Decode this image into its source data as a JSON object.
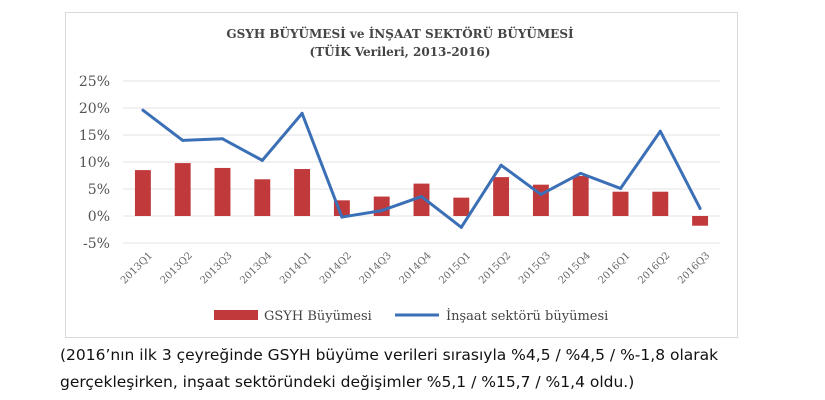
{
  "chart_data": {
    "type": "bar",
    "title": "GSYH BÜYÜMESİ ve İNŞAAT SEKTÖRÜ BÜYÜMESİ",
    "subtitle": "(TÜİK Verileri, 2013-2016)",
    "categories": [
      "2013Q1",
      "2013Q2",
      "2013Q3",
      "2013Q4",
      "2014Q1",
      "2014Q2",
      "2014Q3",
      "2014Q4",
      "2015Q1",
      "2015Q2",
      "2015Q3",
      "2015Q4",
      "2016Q1",
      "2016Q2",
      "2016Q3"
    ],
    "series": [
      {
        "name": "GSYH Büyümesi",
        "type": "bar",
        "color": "#c0393b",
        "values": [
          8.5,
          9.8,
          8.9,
          6.8,
          8.7,
          2.9,
          3.6,
          6.0,
          3.4,
          7.2,
          5.8,
          7.4,
          4.5,
          4.5,
          -1.8
        ]
      },
      {
        "name": "İnşaat sektörü büyümesi",
        "type": "line",
        "color": "#3b6fb6",
        "values": [
          19.6,
          14.0,
          14.3,
          10.3,
          19.0,
          -0.2,
          1.0,
          3.6,
          -2.1,
          9.4,
          4.0,
          7.9,
          5.1,
          15.7,
          1.4
        ]
      }
    ],
    "yticks": [
      "25%",
      "20%",
      "15%",
      "10%",
      "5%",
      "0%",
      "-5%"
    ],
    "ylim": [
      -5,
      25
    ],
    "grid": true,
    "legend": "bottom"
  },
  "caption": {
    "line1": "(2016’nın ilk 3 çeyreğinde GSYH büyüme verileri sırasıyla %4,5 / %4,5 / %-1,8 olarak",
    "line2": "gerçekleşirken, inşaat sektöründeki değişimler %5,1 / %15,7 / %1,4 oldu.)"
  }
}
